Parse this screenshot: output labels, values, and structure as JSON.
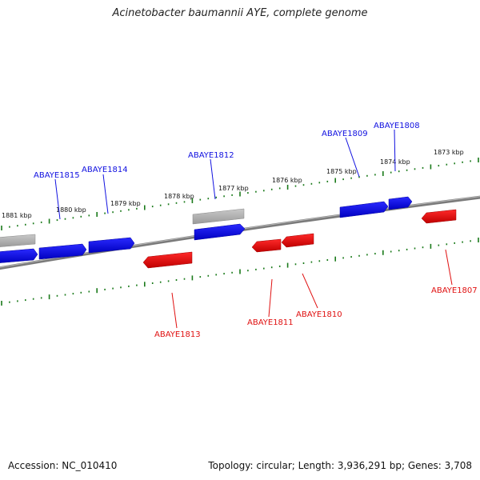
{
  "title": "Acinetobacter baumannii AYE, complete genome",
  "accession": "Accession: NC_010410",
  "summary": "Topology: circular; Length: 3,936,291 bp; Genes: 3,708",
  "colors": {
    "forward": "#1010e0",
    "reverse": "#e01010",
    "other": "#a8a8a8",
    "tick": "#1a7a1a",
    "backbone": "#7a7a7a"
  },
  "scale_labels": [
    "1881 kbp",
    "1880 kbp",
    "1879 kbp",
    "1878 kbp",
    "1877 kbp",
    "1876 kbp",
    "1875 kbp",
    "1874 kbp",
    "1873 kbp"
  ],
  "gene_labels": [
    {
      "name": "ABAYE1815",
      "strand": "forward"
    },
    {
      "name": "ABAYE1814",
      "strand": "forward"
    },
    {
      "name": "ABAYE1812",
      "strand": "forward"
    },
    {
      "name": "ABAYE1809",
      "strand": "forward"
    },
    {
      "name": "ABAYE1808",
      "strand": "forward"
    },
    {
      "name": "ABAYE1813",
      "strand": "reverse"
    },
    {
      "name": "ABAYE1811",
      "strand": "reverse"
    },
    {
      "name": "ABAYE1810",
      "strand": "reverse"
    },
    {
      "name": "ABAYE1807",
      "strand": "reverse"
    }
  ]
}
